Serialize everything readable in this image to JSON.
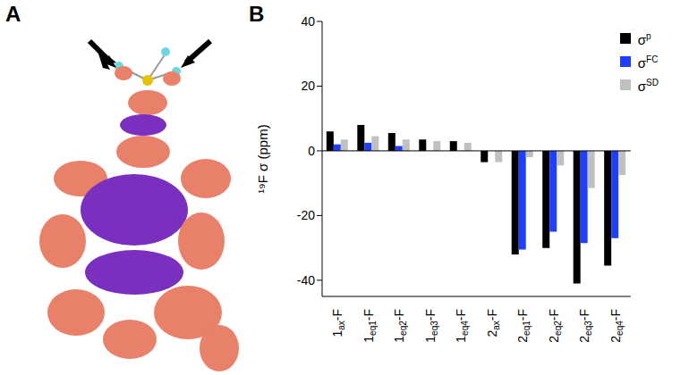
{
  "figure": {
    "panel_letters": [
      "A",
      "B"
    ]
  },
  "chart_data": {
    "type": "bar",
    "y_label": "¹⁹F σ (ppm)",
    "categories": [
      "1ax-F",
      "1eq1-F",
      "1eq2-F",
      "1eq3-F",
      "1eq4-F",
      "2ax-F",
      "2eq1-F",
      "2eq2-F",
      "2eq3-F",
      "2eq4-F"
    ],
    "series": [
      {
        "name": "σp",
        "color": "#000000",
        "values": [
          6,
          8,
          5.5,
          3.5,
          3,
          -3.5,
          -32,
          -30,
          -41,
          -35.5
        ]
      },
      {
        "name": "σFC",
        "color": "#1f3fff",
        "values": [
          2,
          2.5,
          1.5,
          0,
          0,
          0,
          -30.5,
          -25,
          -28.5,
          -27
        ]
      },
      {
        "name": "σSD",
        "color": "#c0c0c0",
        "values": [
          3.5,
          4.5,
          3.5,
          3,
          2.5,
          -3.5,
          -2,
          -4.5,
          -11.5,
          -7.5
        ]
      }
    ],
    "ylim": [
      -45,
      40
    ],
    "yticks": [
      -40,
      -20,
      0,
      20,
      40
    ],
    "grid": false,
    "legend": "upper right"
  }
}
